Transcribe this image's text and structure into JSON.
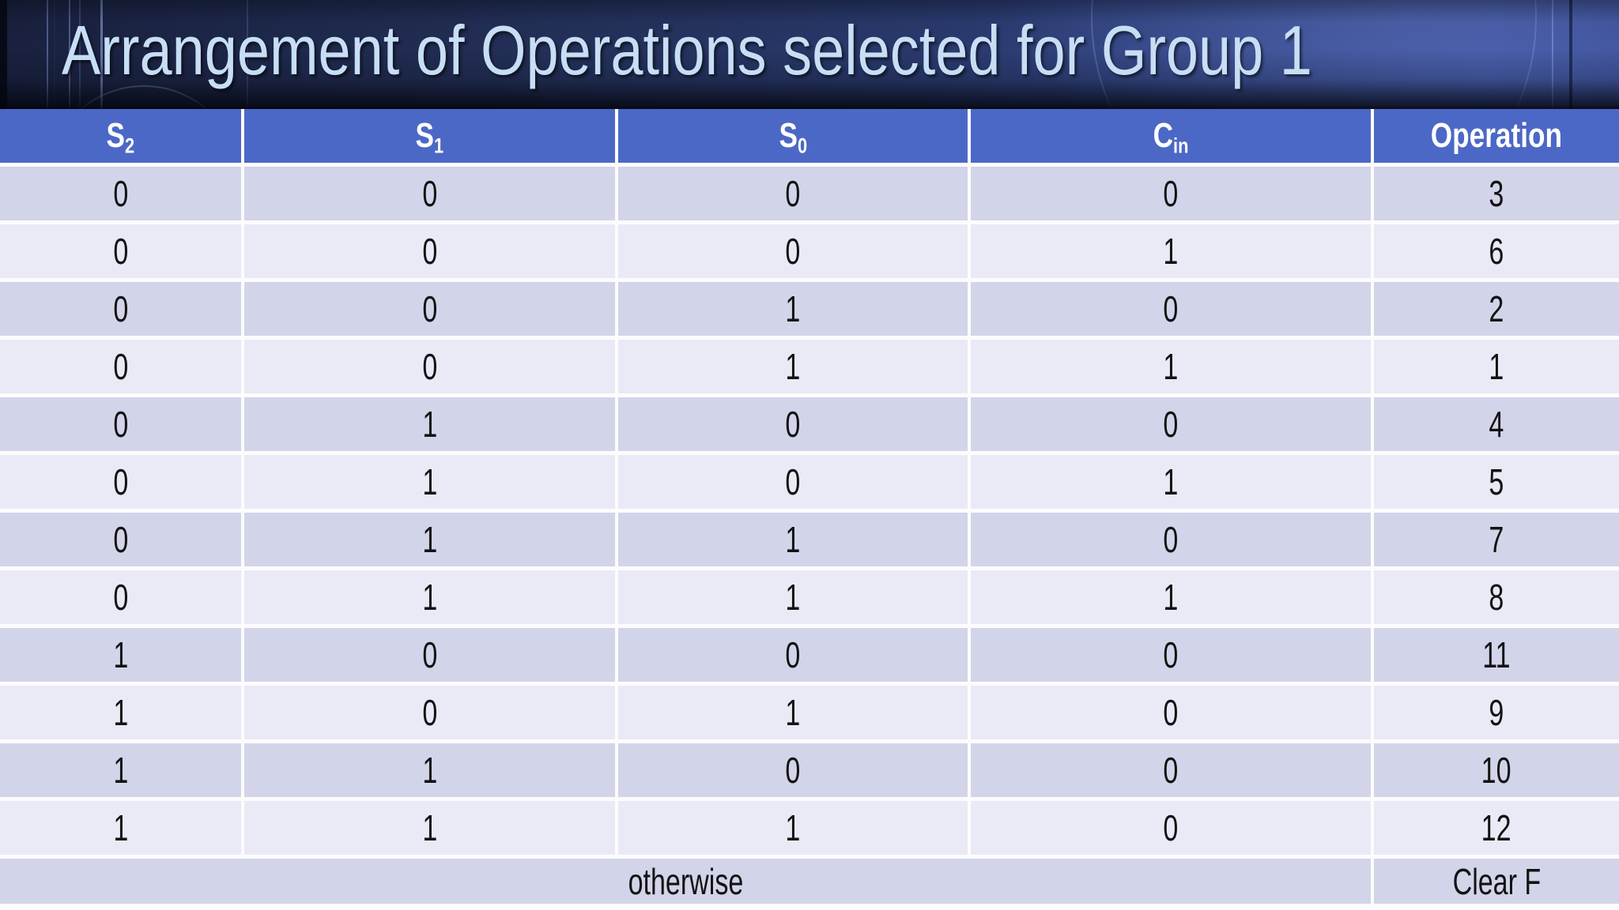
{
  "slide": {
    "title": "Arrangement of Operations selected for Group 1"
  },
  "table": {
    "columns": [
      {
        "base": "S",
        "sub": "2"
      },
      {
        "base": "S",
        "sub": "1"
      },
      {
        "base": "S",
        "sub": "0"
      },
      {
        "base": "C",
        "sub": "in"
      },
      {
        "base": "Operation",
        "sub": ""
      }
    ],
    "rows": [
      [
        "0",
        "0",
        "0",
        "0",
        "3"
      ],
      [
        "0",
        "0",
        "0",
        "1",
        "6"
      ],
      [
        "0",
        "0",
        "1",
        "0",
        "2"
      ],
      [
        "0",
        "0",
        "1",
        "1",
        "1"
      ],
      [
        "0",
        "1",
        "0",
        "0",
        "4"
      ],
      [
        "0",
        "1",
        "0",
        "1",
        "5"
      ],
      [
        "0",
        "1",
        "1",
        "0",
        "7"
      ],
      [
        "0",
        "1",
        "1",
        "1",
        "8"
      ],
      [
        "1",
        "0",
        "0",
        "0",
        "11"
      ],
      [
        "1",
        "0",
        "1",
        "0",
        "9"
      ],
      [
        "1",
        "1",
        "0",
        "0",
        "10"
      ],
      [
        "1",
        "1",
        "1",
        "0",
        "12"
      ]
    ],
    "footer": {
      "condition": "otherwise",
      "operation": "Clear F"
    }
  },
  "colors": {
    "header_background": "#4c68c6",
    "row_dark": "#d2d4e9",
    "row_light": "#e9eaf6",
    "cell_gap": "#fcfcfd",
    "title_text": "#c7def5",
    "band_left": "#19213f",
    "band_right": "#3d52a0",
    "data_text": "#131313"
  }
}
